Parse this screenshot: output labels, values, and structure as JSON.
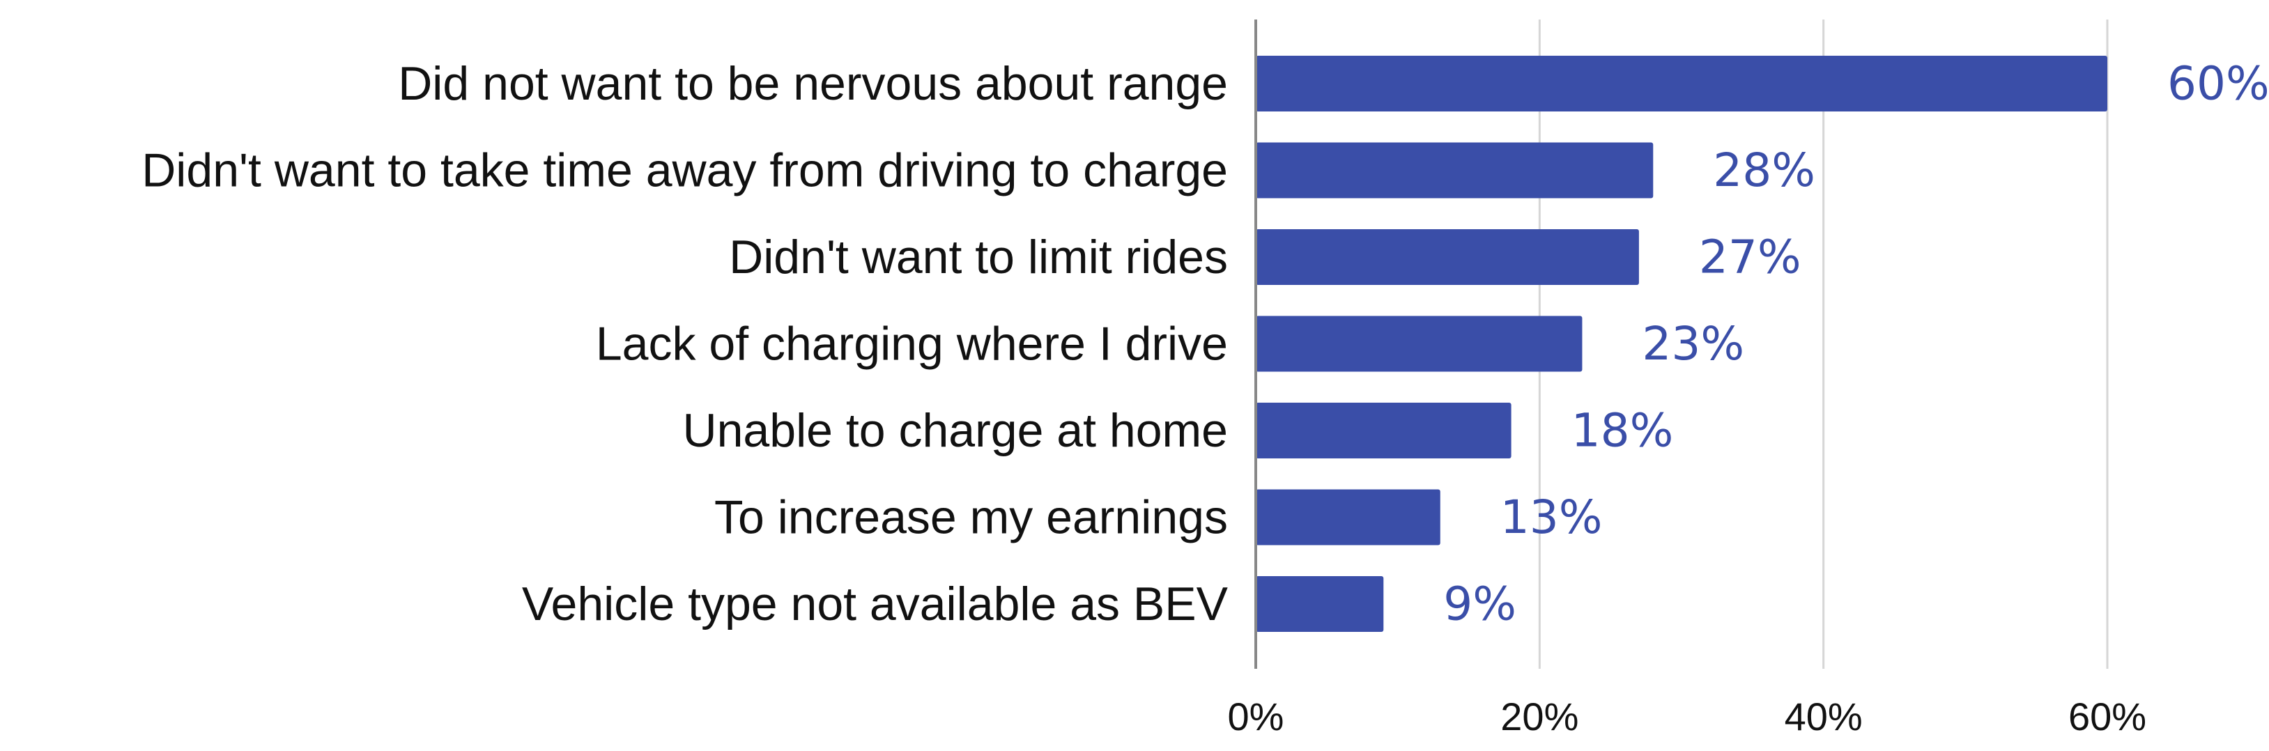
{
  "chart_data": {
    "type": "bar",
    "orientation": "horizontal",
    "title": "",
    "xlabel": "",
    "ylabel": "",
    "categories": [
      "Did not want to be nervous about range",
      "Didn't want to take time away from driving to charge",
      "Didn't want to limit rides",
      "Lack of charging where I drive",
      "Unable to charge at home",
      "To increase my earnings",
      "Vehicle type not available as BEV"
    ],
    "values": [
      60,
      28,
      27,
      23,
      18,
      13,
      9
    ],
    "value_labels": [
      "60%",
      "28%",
      "27%",
      "23%",
      "18%",
      "13%",
      "9%"
    ],
    "xlim": [
      0,
      60
    ],
    "x_ticks": [
      0,
      20,
      40,
      60
    ],
    "x_tick_labels": [
      "0%",
      "20%",
      "40%",
      "60%"
    ],
    "grid": true,
    "legend": "none"
  },
  "colors": {
    "bar": "#3a4ea8",
    "value_label": "#3a4ea8",
    "gridline": "#d6d6d6",
    "axis": "#888888",
    "text": "#111111"
  }
}
